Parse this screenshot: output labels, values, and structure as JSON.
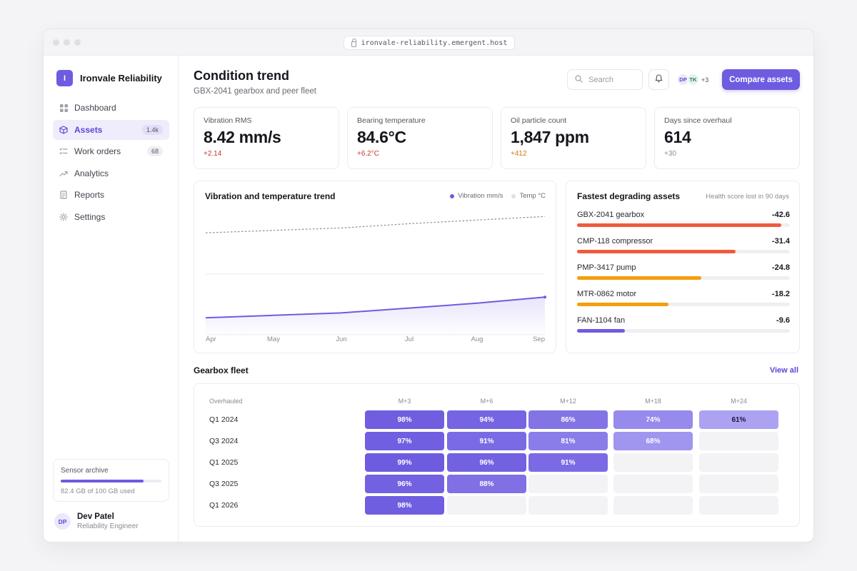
{
  "browser": {
    "url": "ironvale-reliability.emergent.host"
  },
  "brand": {
    "logo_letter": "I",
    "name": "Ironvale Reliability"
  },
  "nav": [
    {
      "label": "Dashboard",
      "icon": "grid-icon",
      "badge": ""
    },
    {
      "label": "Assets",
      "icon": "cube-icon",
      "badge": "1.4k",
      "active": true
    },
    {
      "label": "Work orders",
      "icon": "checklist-icon",
      "badge": "68"
    },
    {
      "label": "Analytics",
      "icon": "trend-up-icon",
      "badge": ""
    },
    {
      "label": "Reports",
      "icon": "document-icon",
      "badge": ""
    },
    {
      "label": "Settings",
      "icon": "gear-icon",
      "badge": ""
    }
  ],
  "storage": {
    "title": "Sensor archive",
    "text": "82.4 GB of 100 GB used",
    "used_fraction": 0.824
  },
  "user": {
    "initials": "DP",
    "name": "Dev Patel",
    "role": "Reliability Engineer"
  },
  "header": {
    "title": "Condition trend",
    "subtitle": "GBX-2041 gearbox and peer fleet",
    "search_placeholder": "Search",
    "team": [
      "DP",
      "TK"
    ],
    "team_more": "+3",
    "compare_label": "Compare assets"
  },
  "kpis": [
    {
      "label": "Vibration RMS",
      "value": "8.42 mm/s",
      "delta": "+2.14",
      "delta_color": "#c0392b"
    },
    {
      "label": "Bearing temperature",
      "value": "84.6°C",
      "delta": "+6.2°C",
      "delta_color": "#c0392b"
    },
    {
      "label": "Oil particle count",
      "value": "1,847 ppm",
      "delta": "+412",
      "delta_color": "#d9730d"
    },
    {
      "label": "Days since overhaul",
      "value": "614",
      "delta": "+30",
      "delta_color": "#8a8a95"
    }
  ],
  "trend_card": {
    "title": "Vibration and temperature trend",
    "legend": [
      {
        "name": "Vibration mm/s",
        "color": "#6d5ce0"
      },
      {
        "name": "Temp °C",
        "color": "#e0e0e6"
      }
    ]
  },
  "chart_data": {
    "type": "line",
    "x": [
      "Apr",
      "May",
      "Jun",
      "Jul",
      "Aug",
      "Sep"
    ],
    "series": [
      {
        "name": "Vibration mm/s",
        "values": [
          0.14,
          0.16,
          0.18,
          0.22,
          0.26,
          0.31
        ],
        "color": "#6d5ce0",
        "style": "solid-area"
      },
      {
        "name": "Temp °C",
        "values": [
          0.84,
          0.86,
          0.88,
          0.915,
          0.945,
          0.975
        ],
        "color": "#8a8a95",
        "style": "dashed"
      }
    ],
    "ylim": [
      0,
      1
    ],
    "grid": "horizontal"
  },
  "degrade_card": {
    "title": "Fastest degrading assets",
    "note": "Health score lost in 90 days",
    "items": [
      {
        "name": "GBX-2041 gearbox",
        "value": "-42.6",
        "fraction": 0.96,
        "color": "#f05a3c"
      },
      {
        "name": "CMP-118 compressor",
        "value": "-31.4",
        "fraction": 0.745,
        "color": "#f05a3c"
      },
      {
        "name": "PMP-3417 pump",
        "value": "-24.8",
        "fraction": 0.585,
        "color": "#f59e0b"
      },
      {
        "name": "MTR-0862 motor",
        "value": "-18.2",
        "fraction": 0.43,
        "color": "#f59e0b"
      },
      {
        "name": "FAN-1104 fan",
        "value": "-9.6",
        "fraction": 0.225,
        "color": "#6d5ce0"
      }
    ]
  },
  "fleet": {
    "title": "Gearbox fleet",
    "view_all": "View all",
    "row_header": "Overhauled",
    "columns": [
      "M+3",
      "M+6",
      "M+12",
      "M+18",
      "M+24"
    ],
    "rows": [
      {
        "label": "Q1 2024",
        "cells": [
          "98%",
          "94%",
          "86%",
          "74%",
          "61%"
        ],
        "levels": [
          98,
          94,
          86,
          74,
          61
        ]
      },
      {
        "label": "Q3 2024",
        "cells": [
          "97%",
          "91%",
          "81%",
          "68%",
          ""
        ],
        "levels": [
          97,
          91,
          81,
          68,
          null
        ]
      },
      {
        "label": "Q1 2025",
        "cells": [
          "99%",
          "96%",
          "91%",
          "",
          ""
        ],
        "levels": [
          99,
          96,
          91,
          null,
          null
        ]
      },
      {
        "label": "Q3 2025",
        "cells": [
          "96%",
          "88%",
          "",
          "",
          ""
        ],
        "levels": [
          96,
          88,
          null,
          null,
          null
        ]
      },
      {
        "label": "Q1 2026",
        "cells": [
          "98%",
          "",
          "",
          "",
          ""
        ],
        "levels": [
          98,
          null,
          null,
          null,
          null
        ]
      }
    ]
  }
}
